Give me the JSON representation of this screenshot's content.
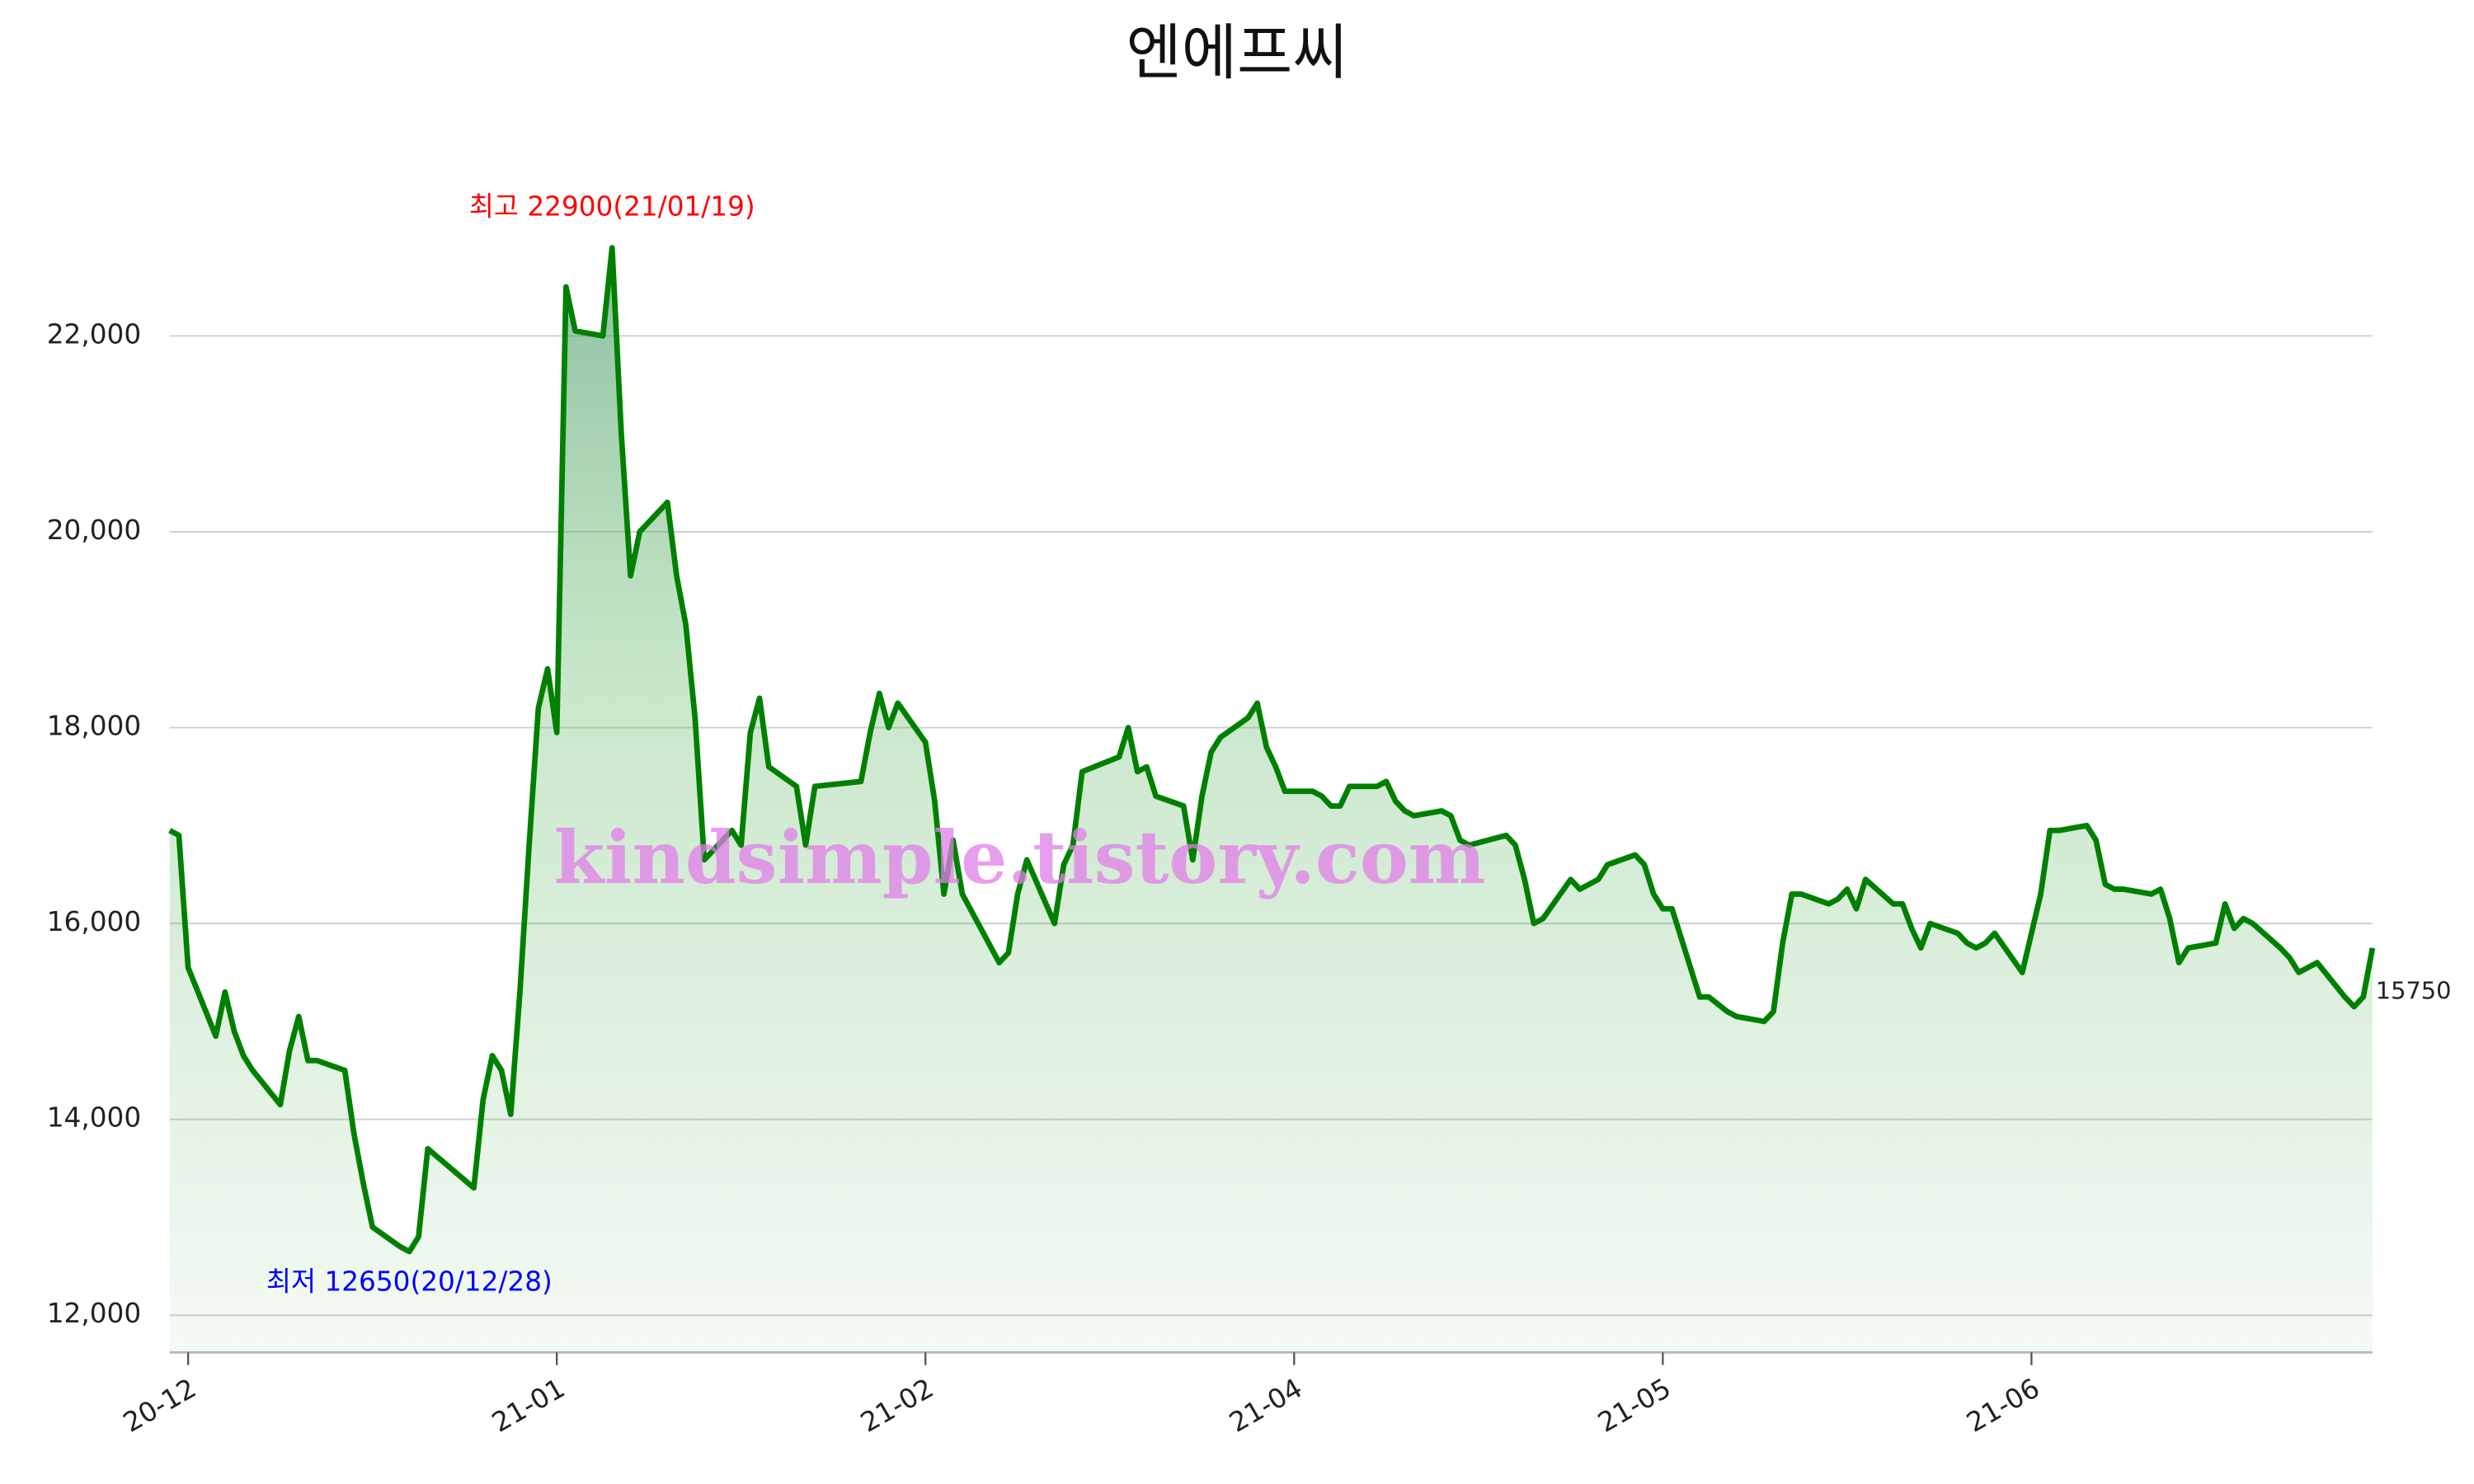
{
  "chart_data": {
    "type": "area-line",
    "title": "엔에프씨",
    "x": [
      0,
      1,
      2,
      5,
      6,
      7,
      8,
      9,
      12,
      13,
      14,
      15,
      16,
      19,
      20,
      21,
      22,
      25,
      26,
      27,
      28,
      33,
      34,
      35,
      36,
      37,
      38,
      39,
      40,
      41,
      42,
      43,
      44,
      47,
      48,
      49,
      50,
      51,
      54,
      55,
      56,
      57,
      58,
      61,
      62,
      63,
      64,
      65,
      68,
      69,
      70,
      75,
      76,
      77,
      78,
      79,
      82,
      83,
      84,
      85,
      86,
      90,
      91,
      92,
      93,
      96,
      97,
      98,
      99,
      103,
      104,
      105,
      106,
      107,
      110,
      111,
      112,
      113,
      114,
      117,
      118,
      119,
      120,
      121,
      124,
      125,
      126,
      127,
      128,
      131,
      132,
      133,
      134,
      135,
      138,
      139,
      140,
      141,
      145,
      146,
      147,
      148,
      149,
      152,
      153,
      155,
      156,
      159,
      160,
      161,
      162,
      163,
      166,
      167,
      169,
      170,
      173,
      174,
      175,
      176,
      177,
      180,
      181,
      182,
      183,
      184,
      187,
      188,
      189,
      190,
      191,
      194,
      195,
      196,
      197,
      198,
      201,
      203,
      204,
      205,
      208,
      209,
      210,
      211,
      212,
      215,
      216,
      217,
      218,
      219,
      222,
      223,
      224,
      225,
      226,
      229,
      230,
      231,
      233,
      236,
      237,
      238,
      239
    ],
    "series": [
      {
        "name": "엔에프씨",
        "color": "#008000",
        "values": [
          16950,
          16900,
          15550,
          14850,
          15300,
          14900,
          14650,
          14500,
          14150,
          14700,
          15050,
          14600,
          14600,
          14500,
          13850,
          13350,
          12900,
          12700,
          12650,
          12800,
          13700,
          13300,
          14200,
          14650,
          14500,
          14050,
          15300,
          16800,
          18200,
          18600,
          17950,
          22500,
          22050,
          22000,
          22900,
          21000,
          19550,
          20000,
          20300,
          19550,
          19050,
          18100,
          16650,
          16950,
          16800,
          17950,
          18300,
          17600,
          17400,
          16800,
          17400,
          17450,
          17950,
          18350,
          18000,
          18250,
          17850,
          17250,
          16300,
          16850,
          16300,
          15600,
          15700,
          16300,
          16650,
          16000,
          16600,
          16800,
          17550,
          17700,
          18000,
          17550,
          17600,
          17300,
          17200,
          16650,
          17300,
          17750,
          17900,
          18100,
          18250,
          17800,
          17600,
          17350,
          17350,
          17300,
          17200,
          17200,
          17400,
          17400,
          17450,
          17250,
          17150,
          17100,
          17150,
          17100,
          16850,
          16800,
          16900,
          16800,
          16450,
          16000,
          16050,
          16450,
          16350,
          16450,
          16600,
          16700,
          16600,
          16300,
          16150,
          16150,
          15250,
          15250,
          15100,
          15050,
          15000,
          15100,
          15800,
          16300,
          16300,
          16200,
          16250,
          16350,
          16150,
          16450,
          16200,
          16200,
          15950,
          15750,
          16000,
          15900,
          15800,
          15750,
          15800,
          15900,
          15500,
          16300,
          16950,
          16950,
          17000,
          16850,
          16400,
          16350,
          16350,
          16300,
          16350,
          16050,
          15600,
          15750,
          15800,
          16200,
          15950,
          16050,
          16000,
          15750,
          15650,
          15500,
          15600,
          15250,
          15150,
          15250,
          15750
        ]
      }
    ],
    "xlim": [
      0,
      239
    ],
    "xticks": [
      {
        "value": 2,
        "label": "20-12"
      },
      {
        "value": 42,
        "label": "21-01"
      },
      {
        "value": 82,
        "label": "21-02"
      },
      {
        "value": 122,
        "label": "21-04"
      },
      {
        "value": 162,
        "label": "21-05"
      },
      {
        "value": 202,
        "label": "21-06"
      }
    ],
    "ylim": [
      11620,
      23730
    ],
    "yticks": [
      {
        "value": 12000,
        "label": "12,000"
      },
      {
        "value": 14000,
        "label": "14,000"
      },
      {
        "value": 16000,
        "label": "16,000"
      },
      {
        "value": 18000,
        "label": "18,000"
      },
      {
        "value": 20000,
        "label": "20,000"
      },
      {
        "value": 22000,
        "label": "22,000"
      }
    ],
    "grid": true,
    "annotations": [
      {
        "text": "최고 22900(21/01/19)",
        "color": "#ff0000",
        "point": 34
      },
      {
        "text": "최저 12650(20/12/28)",
        "color": "#0000ff",
        "point": 18
      }
    ],
    "watermark": "kindsimple.tistory.com"
  }
}
